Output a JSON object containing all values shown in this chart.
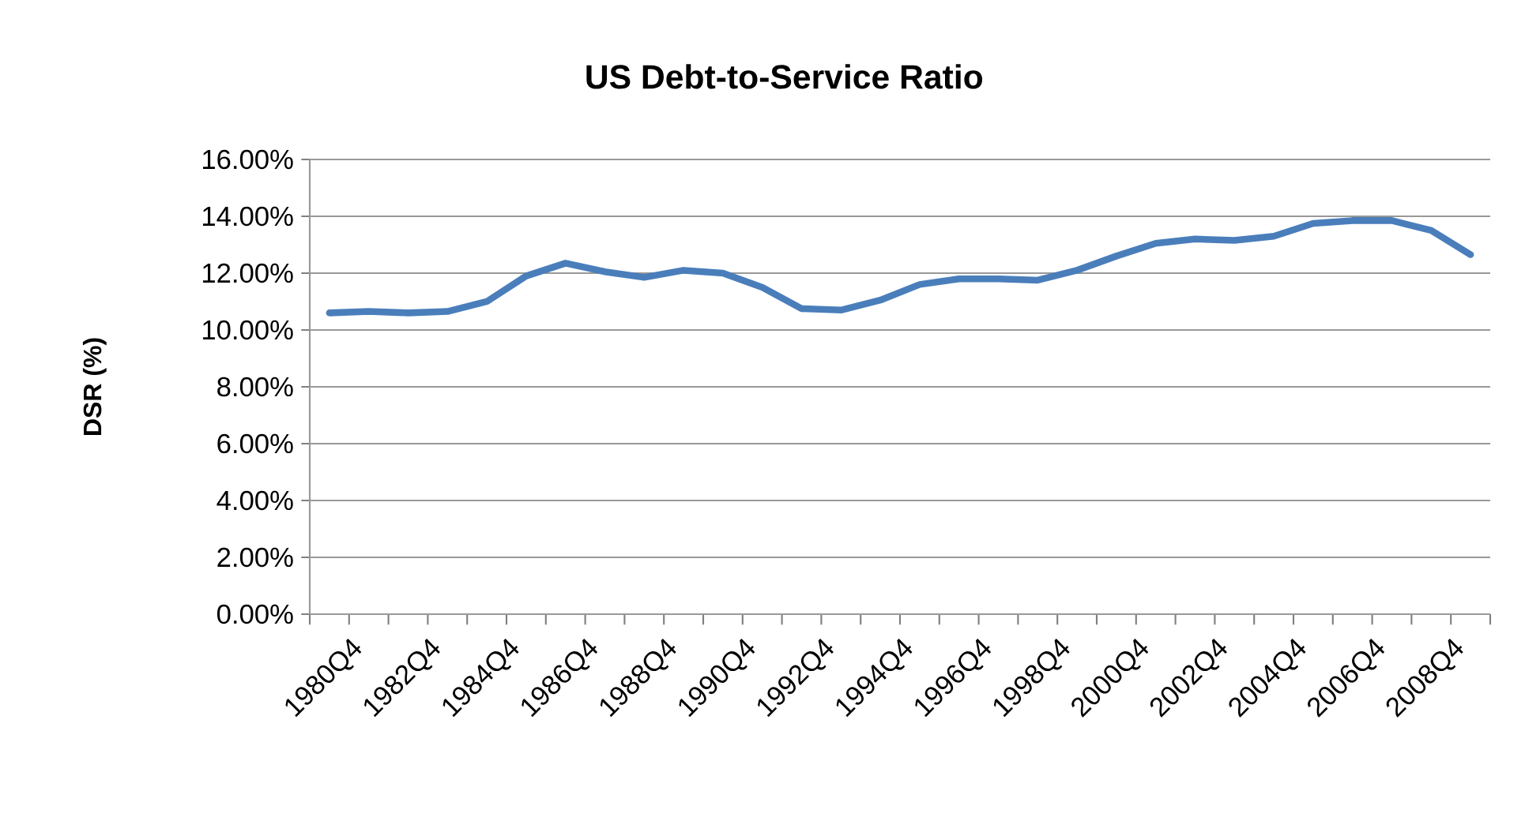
{
  "chart_data": {
    "type": "line",
    "title": "US Debt-to-Service Ratio",
    "ylabel": "DSR (%)",
    "categories": [
      "1980Q4",
      null,
      "1982Q4",
      null,
      "1984Q4",
      null,
      "1986Q4",
      null,
      "1988Q4",
      null,
      "1990Q4",
      null,
      "1992Q4",
      null,
      "1994Q4",
      null,
      "1996Q4",
      null,
      "1998Q4",
      null,
      "2000Q4",
      null,
      "2002Q4",
      null,
      "2004Q4",
      null,
      "2006Q4",
      null,
      "2008Q4",
      null
    ],
    "series": [
      {
        "color": "#4a7ebb",
        "values": [
          10.6,
          10.65,
          10.6,
          10.65,
          11.0,
          11.9,
          12.35,
          12.05,
          11.85,
          12.1,
          12.0,
          11.5,
          10.75,
          10.7,
          11.05,
          11.6,
          11.8,
          11.8,
          11.75,
          12.1,
          12.6,
          13.05,
          13.2,
          13.15,
          13.3,
          13.75,
          13.85,
          13.85,
          13.5,
          12.65
        ]
      }
    ],
    "ylim": [
      0,
      16
    ],
    "yticks": [
      {
        "value": 0,
        "label": "0.00%"
      },
      {
        "value": 2,
        "label": "2.00%"
      },
      {
        "value": 4,
        "label": "4.00%"
      },
      {
        "value": 6,
        "label": "6.00%"
      },
      {
        "value": 8,
        "label": "8.00%"
      },
      {
        "value": 10,
        "label": "10.00%"
      },
      {
        "value": 12,
        "label": "12.00%"
      },
      {
        "value": 14,
        "label": "14.00%"
      },
      {
        "value": 16,
        "label": "16.00%"
      }
    ],
    "grid": "y",
    "marker": "none",
    "line_style": "solid"
  }
}
